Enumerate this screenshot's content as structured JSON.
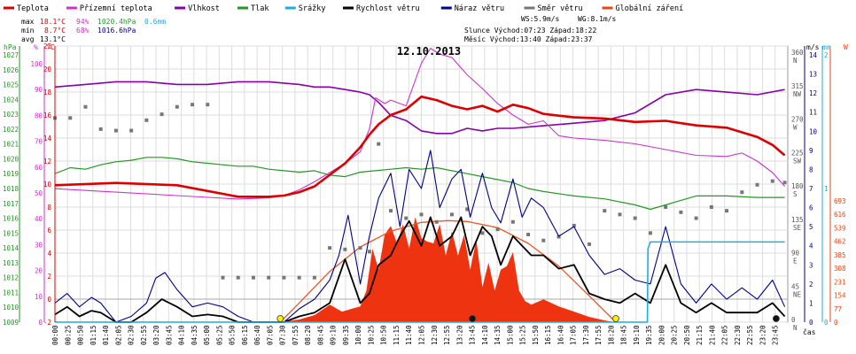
{
  "chart_data": {
    "type": "line",
    "title": "12.10.2013",
    "xlabel": "čas",
    "legend": [
      {
        "name": "Teplota",
        "color": "#dd0000"
      },
      {
        "name": "Přízemní teplota",
        "color": "#cc33cc"
      },
      {
        "name": "Vlhkost",
        "color": "#8800aa"
      },
      {
        "name": "Tlak",
        "color": "#229922"
      },
      {
        "name": "Srážky",
        "color": "#22aadd"
      },
      {
        "name": "Rychlost větru",
        "color": "#000000"
      },
      {
        "name": "Náraz větru",
        "color": "#000088"
      },
      {
        "name": "Směr větru",
        "color": "#777777"
      },
      {
        "name": "Globální záření",
        "color": "#ee4411"
      }
    ],
    "stats": {
      "max_label": "max",
      "max_temp": "18.1°C",
      "max_hum": "94%",
      "max_press": "1020.4hPa",
      "max_rain": "0.6mm",
      "min_label": "min",
      "min_temp": "8.7°C",
      "min_hum": "68%",
      "min_press": "1016.6hPa",
      "avg_label": "avg",
      "avg_temp": "13.1°C",
      "ws": "WS:5.9m/s",
      "wg": "WG:8.1m/s",
      "sun_line": "Slunce Východ:07:23   Západ:18:22",
      "moon_line": "Měsíc  Východ:13:40   Západ:23:37"
    },
    "axis_units": {
      "press": "hPa",
      "hum": "%",
      "temp": "°C",
      "wind": "m/s",
      "rain": "mm",
      "rad": "W"
    },
    "axes": {
      "press_ticks": [
        "1009",
        "1010",
        "1011",
        "1012",
        "1013",
        "1014",
        "1015",
        "1016",
        "1017",
        "1018",
        "1019",
        "1020",
        "1021",
        "1022",
        "1023",
        "1024",
        "1025",
        "1026",
        "1027"
      ],
      "hum_ticks": [
        "0",
        "10",
        "20",
        "30",
        "40",
        "50",
        "60",
        "70",
        "80",
        "90",
        "100"
      ],
      "temp_ticks": [
        "-2",
        "0",
        "2",
        "4",
        "6",
        "8",
        "10",
        "12",
        "14",
        "16",
        "18",
        "20",
        "22"
      ],
      "wind_ticks": [
        "0",
        "1",
        "2",
        "3",
        "4",
        "5",
        "6",
        "7",
        "8",
        "9",
        "10",
        "11",
        "12",
        "13",
        "14"
      ],
      "dir_ticks": [
        {
          "deg": "0",
          "c": "N"
        },
        {
          "deg": "45",
          "c": "NE"
        },
        {
          "deg": "90",
          "c": "E"
        },
        {
          "deg": "135",
          "c": "SE"
        },
        {
          "deg": "180",
          "c": "S"
        },
        {
          "deg": "225",
          "c": "SW"
        },
        {
          "deg": "270",
          "c": "W"
        },
        {
          "deg": "315",
          "c": "NW"
        },
        {
          "deg": "360",
          "c": "N"
        }
      ],
      "rain_ticks": [
        "0",
        "1",
        "2"
      ],
      "rad_ticks": [
        "0",
        "77",
        "154",
        "231",
        "308",
        "385",
        "462",
        "539",
        "616",
        "693"
      ],
      "x_ticks": [
        "00:00",
        "00:25",
        "00:50",
        "01:15",
        "01:40",
        "02:05",
        "02:30",
        "02:55",
        "03:20",
        "03:45",
        "04:10",
        "04:35",
        "05:00",
        "05:25",
        "05:50",
        "06:15",
        "06:40",
        "07:05",
        "07:30",
        "07:55",
        "08:20",
        "08:45",
        "09:10",
        "09:35",
        "10:00",
        "10:25",
        "10:50",
        "11:15",
        "11:40",
        "12:05",
        "12:30",
        "12:55",
        "13:20",
        "13:45",
        "14:10",
        "14:35",
        "15:00",
        "15:25",
        "15:50",
        "16:15",
        "16:40",
        "17:05",
        "17:30",
        "17:55",
        "18:20",
        "18:45",
        "19:10",
        "19:35",
        "20:00",
        "20:25",
        "20:50",
        "21:15",
        "21:40",
        "22:05",
        "22:30",
        "22:55",
        "23:20",
        "23:45"
      ]
    },
    "series": [
      {
        "name": "Teplota",
        "unit": "°C",
        "hours": [
          0,
          2,
          4,
          6,
          7,
          7.5,
          8,
          8.5,
          9,
          9.5,
          10,
          10.3,
          10.6,
          11,
          11.5,
          12,
          12.5,
          13,
          13.5,
          14,
          14.5,
          15,
          15.5,
          16,
          17,
          18,
          19,
          20,
          21,
          22,
          22.5,
          23,
          23.5,
          23.9
        ],
        "values": [
          9.9,
          10.1,
          9.9,
          8.9,
          8.9,
          9.0,
          9.3,
          9.8,
          10.8,
          11.8,
          13.2,
          14.3,
          15.2,
          16.0,
          16.5,
          17.6,
          17.3,
          16.8,
          16.5,
          16.8,
          16.3,
          16.9,
          16.6,
          16.1,
          15.8,
          15.7,
          15.4,
          15.5,
          15.1,
          14.9,
          14.5,
          14.1,
          13.4,
          12.5
        ]
      },
      {
        "name": "Přízemní teplota",
        "unit": "°C",
        "hours": [
          0,
          2,
          4,
          6,
          7,
          7.5,
          8,
          8.5,
          9,
          9.5,
          10,
          10.3,
          10.5,
          10.8,
          11,
          11.5,
          12,
          12.3,
          12.6,
          13,
          13.5,
          14,
          14.5,
          15,
          15.5,
          16,
          16.5,
          17,
          18,
          19,
          20,
          21,
          22,
          22.5,
          23,
          23.5,
          23.9
        ],
        "values": [
          9.6,
          9.3,
          9.0,
          8.7,
          8.8,
          9.0,
          9.5,
          10.2,
          11.0,
          11.8,
          12.8,
          14.8,
          17.5,
          17.0,
          17.3,
          16.8,
          20.5,
          21.8,
          21.3,
          21.0,
          19.5,
          18.3,
          17.0,
          16.0,
          15.2,
          15.5,
          14.2,
          14.0,
          13.8,
          13.5,
          13.0,
          12.5,
          12.4,
          12.7,
          12.0,
          11.0,
          9.8
        ]
      },
      {
        "name": "Vlhkost",
        "unit": "%",
        "hours": [
          0,
          1,
          2,
          3,
          4,
          5,
          6,
          7,
          8,
          8.5,
          9,
          9.5,
          10,
          10.3,
          10.6,
          11,
          11.5,
          12,
          12.5,
          13,
          13.5,
          14,
          14.5,
          15,
          16,
          17,
          18,
          19,
          20,
          21,
          22,
          23,
          23.9
        ],
        "values": [
          91,
          92,
          93,
          93,
          92,
          92,
          93,
          93,
          92,
          91,
          91,
          90,
          89,
          88,
          85,
          80,
          78,
          74,
          73,
          73,
          75,
          74,
          75,
          75,
          76,
          77,
          78,
          81,
          88,
          90,
          89,
          88,
          90
        ]
      },
      {
        "name": "Tlak",
        "unit": "hPa",
        "hours": [
          0,
          0.5,
          1,
          1.5,
          2,
          2.5,
          3,
          3.5,
          4,
          4.5,
          5,
          5.5,
          6,
          6.5,
          7,
          7.5,
          8,
          8.5,
          9,
          9.5,
          10,
          10.5,
          11,
          11.5,
          12,
          12.5,
          13,
          13.5,
          14,
          14.5,
          15,
          15.5,
          16,
          17,
          18,
          19,
          19.5,
          20,
          20.5,
          21,
          22,
          23,
          23.9
        ],
        "values": [
          1019.0,
          1019.4,
          1019.3,
          1019.6,
          1019.8,
          1019.9,
          1020.1,
          1020.1,
          1020.0,
          1019.8,
          1019.7,
          1019.6,
          1019.5,
          1019.5,
          1019.3,
          1019.2,
          1019.1,
          1019.2,
          1018.9,
          1018.8,
          1019.1,
          1019.2,
          1019.3,
          1019.4,
          1019.3,
          1019.4,
          1019.2,
          1019.0,
          1018.8,
          1018.6,
          1018.4,
          1018.0,
          1017.8,
          1017.5,
          1017.3,
          1016.9,
          1016.6,
          1016.9,
          1017.2,
          1017.5,
          1017.5,
          1017.4,
          1017.4
        ]
      },
      {
        "name": "Srážky",
        "unit": "mm",
        "hours": [
          0,
          19.4,
          19.42,
          19.5,
          23.9
        ],
        "values": [
          0,
          0,
          0.55,
          0.6,
          0.6
        ]
      },
      {
        "name": "Rychlost větru",
        "unit": "m/s",
        "hours": [
          0,
          0.4,
          0.8,
          1.2,
          1.5,
          2,
          2.5,
          3,
          3.5,
          4,
          4.5,
          5,
          5.5,
          6,
          6.5,
          7,
          7.5,
          8,
          8.5,
          9,
          9.5,
          10,
          10.3,
          10.6,
          11,
          11.3,
          11.6,
          12,
          12.3,
          12.6,
          13,
          13.3,
          13.6,
          14,
          14.3,
          14.6,
          15,
          15.3,
          15.6,
          16,
          16.5,
          17,
          17.5,
          18,
          18.5,
          19,
          19.5,
          20,
          20.5,
          21,
          21.5,
          22,
          22.5,
          23,
          23.5,
          23.9
        ],
        "values": [
          0.4,
          0.8,
          0.3,
          0.6,
          0.5,
          0,
          0,
          0.5,
          1.2,
          0.8,
          0.3,
          0.4,
          0.3,
          0,
          0,
          0,
          0,
          0.3,
          0.5,
          1.0,
          3.3,
          1.0,
          1.5,
          3.0,
          3.5,
          4.5,
          5.3,
          4.0,
          5.5,
          4.0,
          4.5,
          5.5,
          3.5,
          5.0,
          4.5,
          3.0,
          4.5,
          4.0,
          3.5,
          3.5,
          2.8,
          3.0,
          1.5,
          1.2,
          1.0,
          1.5,
          1.0,
          3.0,
          1.0,
          0.5,
          1.0,
          0.5,
          0.5,
          0.5,
          1.0,
          0.3
        ]
      },
      {
        "name": "Náraz větru",
        "unit": "m/s",
        "hours": [
          0,
          0.4,
          0.8,
          1.2,
          1.5,
          2,
          2.5,
          3,
          3.3,
          3.6,
          4,
          4.5,
          5,
          5.5,
          6,
          6.5,
          7,
          7.5,
          8,
          8.5,
          9,
          9.3,
          9.6,
          10,
          10.3,
          10.6,
          11,
          11.3,
          11.6,
          12,
          12.3,
          12.6,
          13,
          13.3,
          13.6,
          14,
          14.3,
          14.6,
          15,
          15.3,
          15.6,
          16,
          16.5,
          17,
          17.5,
          18,
          18.5,
          19,
          19.5,
          20,
          20.5,
          21,
          21.5,
          22,
          22.5,
          23,
          23.5,
          23.9
        ],
        "values": [
          1.0,
          1.5,
          0.8,
          1.3,
          1.0,
          0,
          0.3,
          1.0,
          2.3,
          2.6,
          1.7,
          0.8,
          1.0,
          0.8,
          0.3,
          0,
          0,
          0,
          0.7,
          1.2,
          2.2,
          3.5,
          5.6,
          2.0,
          4.5,
          6.5,
          7.8,
          5.0,
          8.0,
          7.0,
          9.0,
          6.0,
          7.5,
          8.0,
          5.5,
          7.8,
          6.0,
          5.2,
          7.5,
          5.5,
          6.5,
          6.0,
          4.5,
          5.0,
          3.5,
          2.5,
          2.8,
          2.2,
          2.0,
          5.0,
          2.0,
          1.0,
          2.0,
          1.2,
          1.8,
          1.2,
          2.2,
          0.8
        ]
      },
      {
        "name": "Směr větru",
        "unit": "°",
        "hours": [
          0,
          0.5,
          1,
          1.5,
          2,
          2.5,
          3,
          3.5,
          4,
          4.5,
          5,
          5.5,
          6,
          6.5,
          7,
          7.5,
          8,
          8.5,
          9,
          9.5,
          10,
          10.3,
          10.6,
          11,
          11.5,
          12,
          12.5,
          13,
          13.5,
          14,
          14.5,
          15,
          15.5,
          16,
          16.5,
          17,
          17.5,
          18,
          18.5,
          19,
          19.5,
          20,
          20.5,
          21,
          21.5,
          22,
          22.5,
          23,
          23.5,
          23.9
        ],
        "values": [
          275,
          275,
          290,
          260,
          258,
          258,
          272,
          280,
          290,
          293,
          293,
          60,
          60,
          60,
          60,
          60,
          60,
          60,
          100,
          98,
          100,
          95,
          240,
          150,
          140,
          145,
          135,
          145,
          152,
          120,
          125,
          135,
          118,
          110,
          115,
          130,
          105,
          150,
          145,
          140,
          120,
          155,
          148,
          140,
          155,
          150,
          175,
          185,
          190,
          188
        ]
      },
      {
        "name": "Globální záření",
        "unit": "W",
        "hours": [
          0,
          7.4,
          8.0,
          8.5,
          9.0,
          9.4,
          9.8,
          10.0,
          10.2,
          10.4,
          10.6,
          10.8,
          11.0,
          11.2,
          11.4,
          11.6,
          11.8,
          12.0,
          12.2,
          12.4,
          12.6,
          12.8,
          13.0,
          13.2,
          13.4,
          13.6,
          13.8,
          14.0,
          14.2,
          14.4,
          14.6,
          14.8,
          15.0,
          15.2,
          15.4,
          15.6,
          16.0,
          16.5,
          17.0,
          17.5,
          18.0,
          18.3,
          23.9
        ],
        "values": [
          0,
          0,
          15,
          40,
          100,
          60,
          80,
          90,
          180,
          420,
          300,
          500,
          550,
          450,
          560,
          420,
          600,
          480,
          460,
          450,
          560,
          380,
          520,
          380,
          500,
          300,
          470,
          200,
          340,
          180,
          300,
          320,
          400,
          180,
          120,
          100,
          130,
          90,
          60,
          30,
          10,
          0,
          0
        ]
      },
      {
        "name": "Globální záření (teoretické)",
        "unit": "W",
        "hours": [
          7.38,
          8,
          9,
          10,
          11,
          12,
          12.87,
          13.5,
          14.5,
          15.5,
          16.5,
          17.5,
          18.37
        ],
        "values": [
          0,
          110,
          290,
          430,
          520,
          570,
          580,
          575,
          540,
          450,
          320,
          150,
          0
        ]
      }
    ],
    "markers": [
      {
        "name": "Východ slunce",
        "hour": 7.38,
        "color": "#ffee00"
      },
      {
        "name": "Západ slunce",
        "hour": 18.37,
        "color": "#ffee00"
      },
      {
        "name": "Východ měsíce",
        "hour": 13.67,
        "color": "#111111"
      },
      {
        "name": "Západ měsíce",
        "hour": 23.62,
        "color": "#111111"
      }
    ]
  }
}
